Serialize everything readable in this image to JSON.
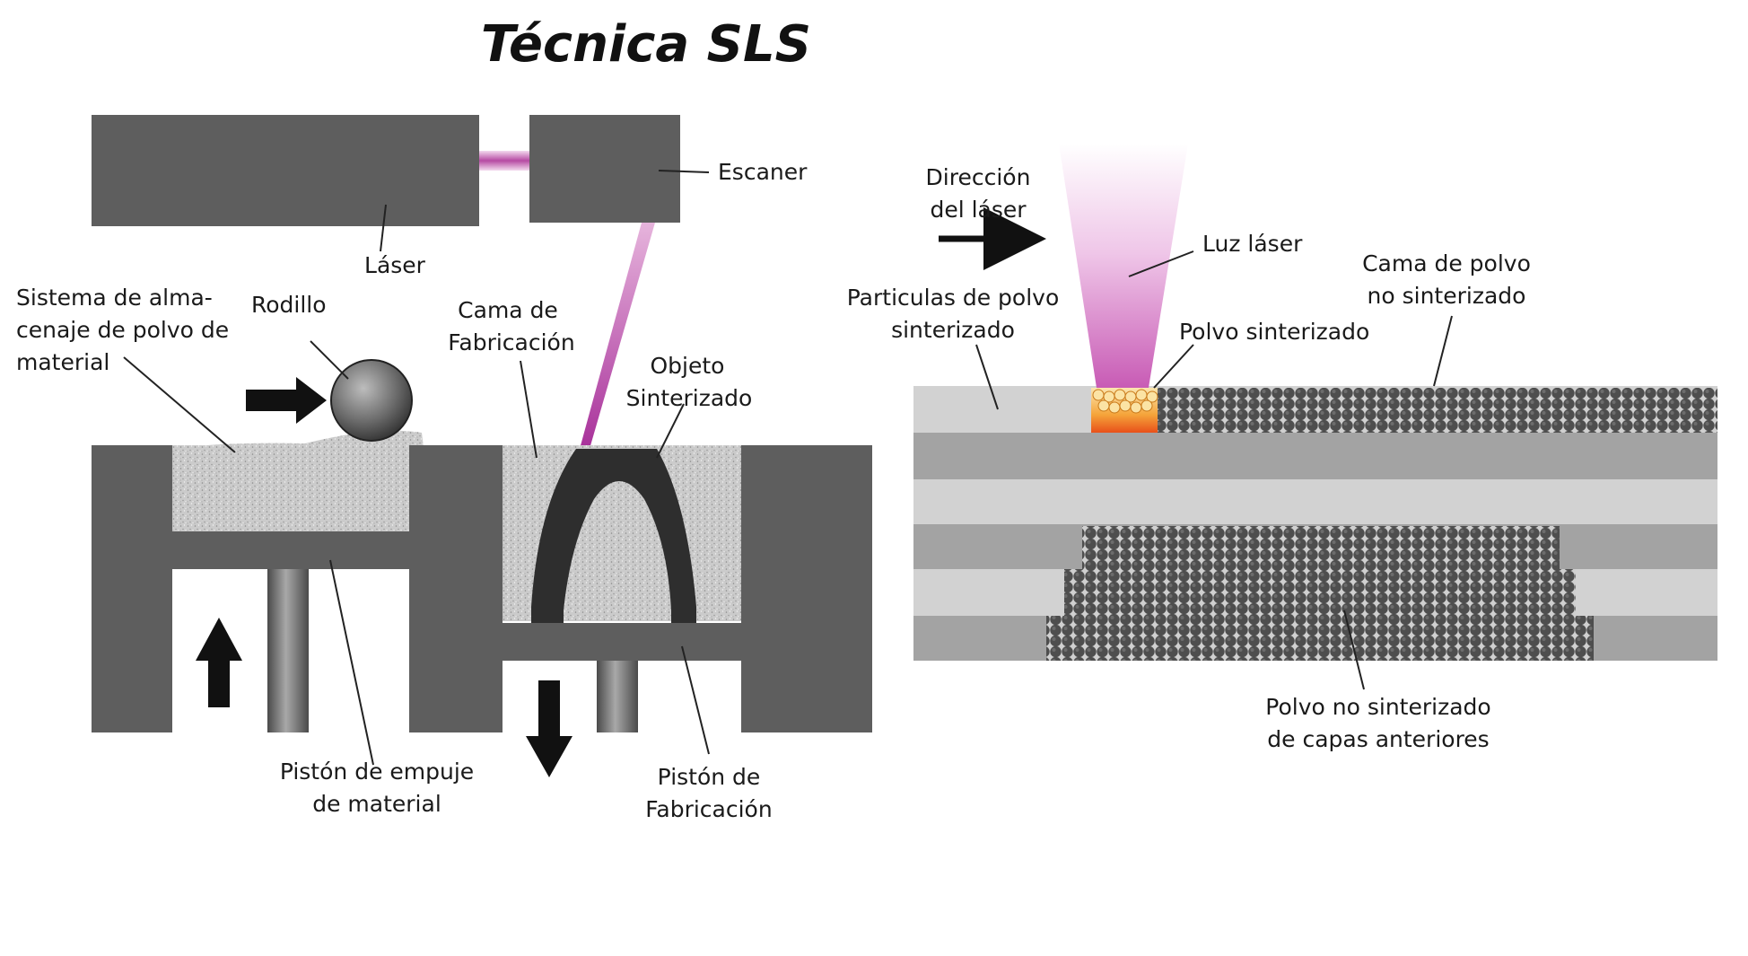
{
  "title": "Técnica SLS",
  "left_panel": {
    "laser_label": "Láser",
    "scanner_label": "Escaner",
    "storage_label_lines": [
      "Sistema de alma-",
      "cenaje de polvo de",
      "material"
    ],
    "roller_label": "Rodillo",
    "build_bed_label_lines": [
      "Cama de",
      "Fabricación"
    ],
    "sintered_object_label_lines": [
      "Objeto",
      "Sinterizado"
    ],
    "push_piston_label_lines": [
      "Pistón de empuje",
      "de material"
    ],
    "build_piston_label_lines": [
      "Pistón de",
      "Fabricación"
    ]
  },
  "right_panel": {
    "laser_direction_label_lines": [
      "Dirección",
      "del láser"
    ],
    "laser_light_label": "Luz láser",
    "unsintered_bed_label_lines": [
      "Cama de polvo",
      "no sinterizado"
    ],
    "sintered_particles_label_lines": [
      "Particulas de polvo",
      "sinterizado"
    ],
    "sintered_powder_label": "Polvo sinterizado",
    "previous_layers_label_lines": [
      "Polvo no sinterizado",
      "de capas anteriores"
    ]
  },
  "colors": {
    "machine_gray": "#5e5e5e",
    "powder_gray": "#c8c8c8",
    "laser_magenta": "#b0409c",
    "sinter_orange": "#f08a18",
    "layer_dark": "#a3a3a3",
    "layer_light": "#d2d2d2",
    "particle": "#4e4e4e"
  }
}
